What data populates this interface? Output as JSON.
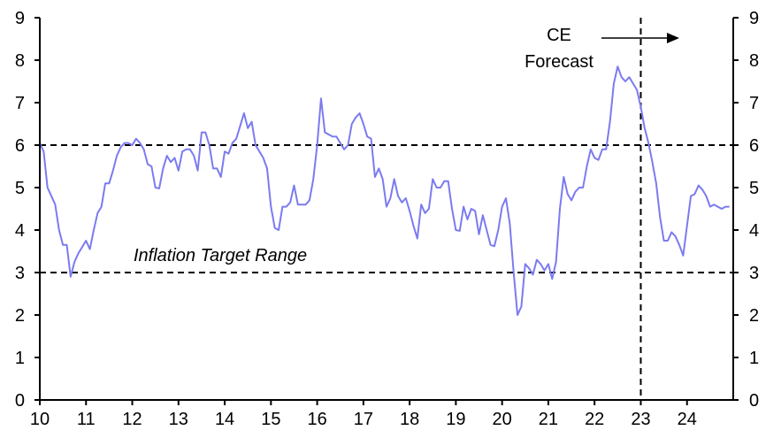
{
  "chart_data": {
    "type": "line",
    "title": "",
    "xlabel": "",
    "ylabel": "",
    "ylim": [
      0,
      9
    ],
    "xlim": [
      2010,
      2025
    ],
    "x_tick_labels": [
      "10",
      "11",
      "12",
      "13",
      "14",
      "15",
      "16",
      "17",
      "18",
      "19",
      "20",
      "21",
      "22",
      "23",
      "24"
    ],
    "y_tick_labels": [
      "0",
      "1",
      "2",
      "3",
      "4",
      "5",
      "6",
      "7",
      "8",
      "9"
    ],
    "grid": false,
    "series_color": "#7b7bf0",
    "series": [
      {
        "name": "Inflation",
        "start": "2010-01",
        "frequency": "monthly",
        "values": [
          6.05,
          5.85,
          5.0,
          4.8,
          4.6,
          4.0,
          3.65,
          3.65,
          2.9,
          3.25,
          3.45,
          3.6,
          3.75,
          3.55,
          4.0,
          4.4,
          4.55,
          5.1,
          5.1,
          5.4,
          5.75,
          5.95,
          6.05,
          6.05,
          6.0,
          6.15,
          6.05,
          5.9,
          5.55,
          5.5,
          5.0,
          4.98,
          5.45,
          5.75,
          5.6,
          5.7,
          5.4,
          5.85,
          5.9,
          5.9,
          5.75,
          5.4,
          6.3,
          6.3,
          6.0,
          5.45,
          5.45,
          5.25,
          5.85,
          5.8,
          6.05,
          6.15,
          6.45,
          6.75,
          6.4,
          6.55,
          6.0,
          5.85,
          5.7,
          5.45,
          4.55,
          4.05,
          4.0,
          4.55,
          4.55,
          4.65,
          5.05,
          4.6,
          4.6,
          4.6,
          4.7,
          5.2,
          6.0,
          7.1,
          6.3,
          6.25,
          6.2,
          6.2,
          6.05,
          5.9,
          6.0,
          6.5,
          6.65,
          6.75,
          6.5,
          6.2,
          6.15,
          5.25,
          5.45,
          5.2,
          4.55,
          4.75,
          5.2,
          4.8,
          4.65,
          4.75,
          4.45,
          4.1,
          3.8,
          4.6,
          4.4,
          4.5,
          5.2,
          5.0,
          5.0,
          5.15,
          5.15,
          4.5,
          4.0,
          3.98,
          4.55,
          4.25,
          4.5,
          4.45,
          3.9,
          4.35,
          4.0,
          3.65,
          3.62,
          4.0,
          4.55,
          4.75,
          4.15,
          3.0,
          2.0,
          2.2,
          3.2,
          3.1,
          2.95,
          3.3,
          3.2,
          3.05,
          3.2,
          2.85,
          3.25,
          4.5,
          5.25,
          4.85,
          4.7,
          4.9,
          5.0,
          5.0,
          5.5,
          5.9,
          5.7,
          5.65,
          5.9,
          5.9,
          6.55,
          7.45,
          7.85,
          7.6,
          7.5,
          7.6,
          7.45,
          7.3,
          6.9,
          6.4,
          6.05,
          5.6,
          5.1,
          4.3,
          3.75,
          3.75,
          3.95,
          3.85,
          3.65,
          3.4,
          4.1,
          4.8,
          4.85,
          5.05,
          4.95,
          4.8,
          4.55,
          4.6,
          4.55,
          4.5,
          4.55,
          4.55
        ]
      }
    ],
    "reference_lines": {
      "horizontal": [
        3,
        6
      ],
      "vertical_year": 2023
    },
    "annotations": {
      "target_range": "Inflation Target Range",
      "forecast_line1": "CE",
      "forecast_line2": "Forecast"
    }
  }
}
